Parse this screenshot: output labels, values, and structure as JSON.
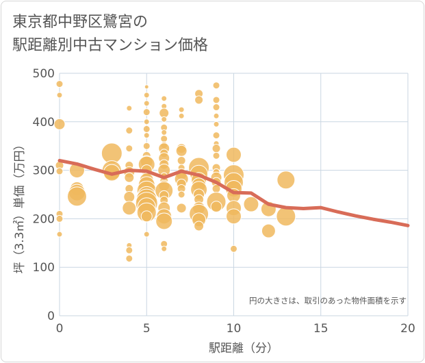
{
  "title_line1": "東京都中野区鷺宮の",
  "title_line2": "駅距離別中古マンション価格",
  "colors": {
    "bubble": "#f0b85e",
    "bubble_stroke": "#ffffff",
    "trend": "#d86c58",
    "grid": "#c9d6e2",
    "text": "#555555"
  },
  "chart_data": {
    "type": "scatter",
    "title": "東京都中野区鷺宮の駅距離別中古マンション価格",
    "xlabel": "駅距離（分）",
    "ylabel": "坪（3.3㎡）単価（万円）",
    "xlim": [
      0,
      20
    ],
    "ylim": [
      0,
      500
    ],
    "xticks": [
      "0",
      "5",
      "10",
      "15",
      "20"
    ],
    "yticks": [
      "0",
      "100",
      "200",
      "300",
      "400",
      "500"
    ],
    "grid": true,
    "note": "円の大きさは、取引のあった物件面積を示す",
    "trend": {
      "x": [
        0,
        1,
        2,
        3,
        4,
        5,
        6,
        7,
        8,
        9,
        10,
        11,
        12,
        13,
        14,
        15,
        16,
        17,
        18,
        19,
        20
      ],
      "y": [
        320,
        313,
        302,
        292,
        300,
        298,
        285,
        298,
        290,
        275,
        254,
        253,
        230,
        223,
        221,
        223,
        214,
        206,
        199,
        193,
        186
      ]
    },
    "points": [
      {
        "x": 0,
        "y": 478,
        "s": 5
      },
      {
        "x": 0,
        "y": 455,
        "s": 4
      },
      {
        "x": 0,
        "y": 395,
        "s": 8
      },
      {
        "x": 0,
        "y": 310,
        "s": 6
      },
      {
        "x": 0,
        "y": 298,
        "s": 5
      },
      {
        "x": 0,
        "y": 210,
        "s": 5
      },
      {
        "x": 0,
        "y": 200,
        "s": 5
      },
      {
        "x": 0,
        "y": 168,
        "s": 4
      },
      {
        "x": 1,
        "y": 300,
        "s": 11
      },
      {
        "x": 1,
        "y": 262,
        "s": 10
      },
      {
        "x": 1,
        "y": 254,
        "s": 12
      },
      {
        "x": 1,
        "y": 246,
        "s": 14
      },
      {
        "x": 3,
        "y": 335,
        "s": 15
      },
      {
        "x": 3,
        "y": 300,
        "s": 14
      },
      {
        "x": 3,
        "y": 295,
        "s": 12
      },
      {
        "x": 4,
        "y": 428,
        "s": 4
      },
      {
        "x": 4,
        "y": 382,
        "s": 5
      },
      {
        "x": 4,
        "y": 345,
        "s": 5
      },
      {
        "x": 4,
        "y": 310,
        "s": 6
      },
      {
        "x": 4,
        "y": 296,
        "s": 8
      },
      {
        "x": 4,
        "y": 285,
        "s": 7
      },
      {
        "x": 4,
        "y": 262,
        "s": 6
      },
      {
        "x": 4,
        "y": 245,
        "s": 8
      },
      {
        "x": 4,
        "y": 222,
        "s": 10
      },
      {
        "x": 4,
        "y": 145,
        "s": 4
      },
      {
        "x": 4,
        "y": 135,
        "s": 5
      },
      {
        "x": 4,
        "y": 118,
        "s": 5
      },
      {
        "x": 5,
        "y": 472,
        "s": 3
      },
      {
        "x": 5,
        "y": 455,
        "s": 4
      },
      {
        "x": 5,
        "y": 438,
        "s": 4
      },
      {
        "x": 5,
        "y": 420,
        "s": 5
      },
      {
        "x": 5,
        "y": 400,
        "s": 4
      },
      {
        "x": 5,
        "y": 385,
        "s": 5
      },
      {
        "x": 5,
        "y": 372,
        "s": 4
      },
      {
        "x": 5,
        "y": 350,
        "s": 5
      },
      {
        "x": 5,
        "y": 330,
        "s": 6
      },
      {
        "x": 5,
        "y": 318,
        "s": 9
      },
      {
        "x": 5,
        "y": 312,
        "s": 12
      },
      {
        "x": 5,
        "y": 300,
        "s": 8
      },
      {
        "x": 5,
        "y": 290,
        "s": 6
      },
      {
        "x": 5,
        "y": 280,
        "s": 10
      },
      {
        "x": 5,
        "y": 270,
        "s": 12
      },
      {
        "x": 5,
        "y": 258,
        "s": 14
      },
      {
        "x": 5,
        "y": 248,
        "s": 13
      },
      {
        "x": 5,
        "y": 240,
        "s": 15
      },
      {
        "x": 5,
        "y": 232,
        "s": 16
      },
      {
        "x": 5,
        "y": 225,
        "s": 13
      },
      {
        "x": 5,
        "y": 213,
        "s": 14
      },
      {
        "x": 5,
        "y": 205,
        "s": 8
      },
      {
        "x": 5,
        "y": 168,
        "s": 4
      },
      {
        "x": 6,
        "y": 448,
        "s": 4
      },
      {
        "x": 6,
        "y": 432,
        "s": 4
      },
      {
        "x": 6,
        "y": 418,
        "s": 7
      },
      {
        "x": 6,
        "y": 405,
        "s": 4
      },
      {
        "x": 6,
        "y": 388,
        "s": 5
      },
      {
        "x": 6,
        "y": 378,
        "s": 4
      },
      {
        "x": 6,
        "y": 365,
        "s": 5
      },
      {
        "x": 6,
        "y": 352,
        "s": 5
      },
      {
        "x": 6,
        "y": 345,
        "s": 8
      },
      {
        "x": 6,
        "y": 335,
        "s": 6
      },
      {
        "x": 6,
        "y": 325,
        "s": 8
      },
      {
        "x": 6,
        "y": 312,
        "s": 7
      },
      {
        "x": 6,
        "y": 300,
        "s": 9
      },
      {
        "x": 6,
        "y": 288,
        "s": 5
      },
      {
        "x": 6,
        "y": 278,
        "s": 6
      },
      {
        "x": 6,
        "y": 268,
        "s": 8
      },
      {
        "x": 6,
        "y": 258,
        "s": 13
      },
      {
        "x": 6,
        "y": 248,
        "s": 7
      },
      {
        "x": 6,
        "y": 238,
        "s": 6
      },
      {
        "x": 6,
        "y": 222,
        "s": 9
      },
      {
        "x": 6,
        "y": 205,
        "s": 11
      },
      {
        "x": 6,
        "y": 195,
        "s": 12
      },
      {
        "x": 6,
        "y": 148,
        "s": 5
      },
      {
        "x": 6,
        "y": 138,
        "s": 4
      },
      {
        "x": 7,
        "y": 425,
        "s": 4
      },
      {
        "x": 7,
        "y": 412,
        "s": 4
      },
      {
        "x": 7,
        "y": 345,
        "s": 7
      },
      {
        "x": 7,
        "y": 340,
        "s": 8
      },
      {
        "x": 7,
        "y": 320,
        "s": 6
      },
      {
        "x": 7,
        "y": 305,
        "s": 5
      },
      {
        "x": 7,
        "y": 292,
        "s": 8
      },
      {
        "x": 7,
        "y": 282,
        "s": 10
      },
      {
        "x": 7,
        "y": 272,
        "s": 7
      },
      {
        "x": 7,
        "y": 262,
        "s": 6
      },
      {
        "x": 7,
        "y": 250,
        "s": 5
      },
      {
        "x": 7,
        "y": 222,
        "s": 7
      },
      {
        "x": 8,
        "y": 458,
        "s": 6
      },
      {
        "x": 8,
        "y": 445,
        "s": 6
      },
      {
        "x": 8,
        "y": 305,
        "s": 15
      },
      {
        "x": 8,
        "y": 292,
        "s": 13
      },
      {
        "x": 8,
        "y": 280,
        "s": 11
      },
      {
        "x": 8,
        "y": 270,
        "s": 10
      },
      {
        "x": 8,
        "y": 260,
        "s": 12
      },
      {
        "x": 8,
        "y": 250,
        "s": 8
      },
      {
        "x": 8,
        "y": 240,
        "s": 7
      },
      {
        "x": 8,
        "y": 222,
        "s": 9
      },
      {
        "x": 8,
        "y": 210,
        "s": 14
      },
      {
        "x": 8,
        "y": 198,
        "s": 10
      },
      {
        "x": 8,
        "y": 185,
        "s": 7
      },
      {
        "x": 9,
        "y": 475,
        "s": 5
      },
      {
        "x": 9,
        "y": 445,
        "s": 5
      },
      {
        "x": 9,
        "y": 430,
        "s": 5
      },
      {
        "x": 9,
        "y": 412,
        "s": 4
      },
      {
        "x": 9,
        "y": 395,
        "s": 4
      },
      {
        "x": 9,
        "y": 372,
        "s": 5
      },
      {
        "x": 9,
        "y": 355,
        "s": 4
      },
      {
        "x": 9,
        "y": 345,
        "s": 6
      },
      {
        "x": 9,
        "y": 330,
        "s": 5
      },
      {
        "x": 9,
        "y": 305,
        "s": 6
      },
      {
        "x": 9,
        "y": 296,
        "s": 5
      },
      {
        "x": 9,
        "y": 285,
        "s": 8
      },
      {
        "x": 9,
        "y": 275,
        "s": 7
      },
      {
        "x": 9,
        "y": 262,
        "s": 6
      },
      {
        "x": 9,
        "y": 235,
        "s": 14
      },
      {
        "x": 9,
        "y": 225,
        "s": 8
      },
      {
        "x": 10,
        "y": 332,
        "s": 11
      },
      {
        "x": 10,
        "y": 290,
        "s": 15
      },
      {
        "x": 10,
        "y": 275,
        "s": 14
      },
      {
        "x": 10,
        "y": 262,
        "s": 12
      },
      {
        "x": 10,
        "y": 248,
        "s": 10
      },
      {
        "x": 10,
        "y": 222,
        "s": 11
      },
      {
        "x": 10,
        "y": 205,
        "s": 11
      },
      {
        "x": 10,
        "y": 138,
        "s": 5
      },
      {
        "x": 11,
        "y": 230,
        "s": 11
      },
      {
        "x": 12,
        "y": 220,
        "s": 11
      },
      {
        "x": 12,
        "y": 175,
        "s": 10
      },
      {
        "x": 13,
        "y": 280,
        "s": 13
      },
      {
        "x": 13,
        "y": 205,
        "s": 14
      }
    ]
  }
}
